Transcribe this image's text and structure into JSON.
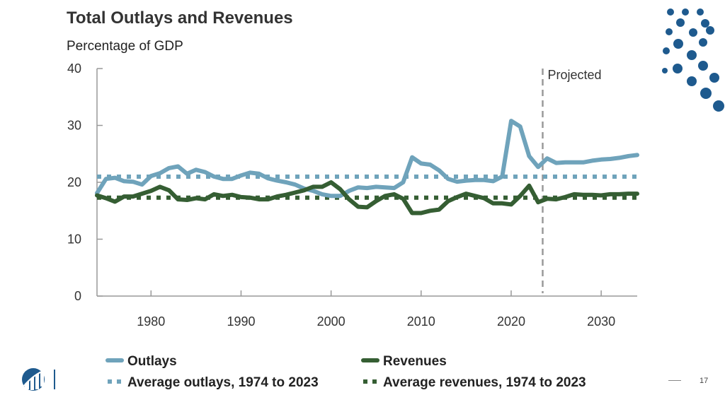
{
  "slide": {
    "page_number": "17",
    "colors": {
      "outlays": "#6fa3bb",
      "revenues": "#355e33",
      "dots": "#1e5a8e",
      "axis": "#999999"
    }
  },
  "chart_data": {
    "type": "line",
    "title": "Total Outlays and Revenues",
    "subtitle": "Percentage of GDP",
    "xlabel": "",
    "ylabel": "Percentage of GDP",
    "xlim": [
      1974,
      2034
    ],
    "ylim": [
      0,
      40
    ],
    "yticks": [
      0,
      10,
      20,
      30,
      40
    ],
    "xticks": [
      1980,
      1990,
      2000,
      2010,
      2020,
      2030
    ],
    "annotation": {
      "text": "Projected",
      "x": 2023.5
    },
    "series": [
      {
        "name": "Outlays",
        "style": "solid",
        "color": "#6fa3bb",
        "x": [
          1974,
          1975,
          1976,
          1977,
          1978,
          1979,
          1980,
          1981,
          1982,
          1983,
          1984,
          1985,
          1986,
          1987,
          1988,
          1989,
          1990,
          1991,
          1992,
          1993,
          1994,
          1995,
          1996,
          1997,
          1998,
          1999,
          2000,
          2001,
          2002,
          2003,
          2004,
          2005,
          2006,
          2007,
          2008,
          2009,
          2010,
          2011,
          2012,
          2013,
          2014,
          2015,
          2016,
          2017,
          2018,
          2019,
          2020,
          2021,
          2022,
          2023,
          2024,
          2025,
          2026,
          2027,
          2028,
          2029,
          2030,
          2031,
          2032,
          2033,
          2034
        ],
        "values": [
          18.1,
          20.6,
          20.8,
          20.2,
          20.1,
          19.6,
          21.1,
          21.6,
          22.5,
          22.8,
          21.5,
          22.2,
          21.8,
          21.0,
          20.6,
          20.6,
          21.2,
          21.7,
          21.5,
          20.7,
          20.3,
          20.0,
          19.6,
          18.9,
          18.5,
          17.9,
          17.6,
          17.6,
          18.5,
          19.1,
          19.0,
          19.2,
          19.1,
          19.0,
          20.0,
          24.4,
          23.3,
          23.1,
          22.1,
          20.6,
          20.1,
          20.3,
          20.4,
          20.4,
          20.2,
          21.0,
          30.8,
          29.8,
          24.6,
          22.7,
          24.2,
          23.4,
          23.5,
          23.5,
          23.5,
          23.8,
          24.0,
          24.1,
          24.3,
          24.6,
          24.8
        ]
      },
      {
        "name": "Revenues",
        "style": "solid",
        "color": "#355e33",
        "x": [
          1974,
          1975,
          1976,
          1977,
          1978,
          1979,
          1980,
          1981,
          1982,
          1983,
          1984,
          1985,
          1986,
          1987,
          1988,
          1989,
          1990,
          1991,
          1992,
          1993,
          1994,
          1995,
          1996,
          1997,
          1998,
          1999,
          2000,
          2001,
          2002,
          2003,
          2004,
          2005,
          2006,
          2007,
          2008,
          2009,
          2010,
          2011,
          2012,
          2013,
          2014,
          2015,
          2016,
          2017,
          2018,
          2019,
          2020,
          2021,
          2022,
          2023,
          2024,
          2025,
          2026,
          2027,
          2028,
          2029,
          2030,
          2031,
          2032,
          2033,
          2034
        ],
        "values": [
          17.7,
          17.2,
          16.6,
          17.5,
          17.5,
          18.0,
          18.5,
          19.2,
          18.6,
          17.0,
          16.9,
          17.2,
          17.0,
          17.9,
          17.6,
          17.8,
          17.4,
          17.3,
          17.0,
          17.0,
          17.5,
          17.8,
          18.2,
          18.6,
          19.2,
          19.2,
          20.0,
          18.8,
          17.0,
          15.7,
          15.6,
          16.7,
          17.6,
          17.9,
          17.1,
          14.6,
          14.6,
          15.0,
          15.2,
          16.7,
          17.4,
          18.0,
          17.6,
          17.2,
          16.3,
          16.3,
          16.1,
          17.6,
          19.4,
          16.5,
          17.1,
          17.0,
          17.4,
          17.9,
          17.8,
          17.8,
          17.7,
          17.9,
          17.9,
          18.0,
          18.0
        ]
      },
      {
        "name": "Average outlays, 1974 to 2023",
        "style": "dotted",
        "color": "#6fa3bb",
        "x": [
          1974,
          2034
        ],
        "values": [
          21.0,
          21.0
        ]
      },
      {
        "name": "Average revenues, 1974 to 2023",
        "style": "dotted",
        "color": "#355e33",
        "x": [
          1974,
          2034
        ],
        "values": [
          17.3,
          17.3
        ]
      }
    ]
  }
}
